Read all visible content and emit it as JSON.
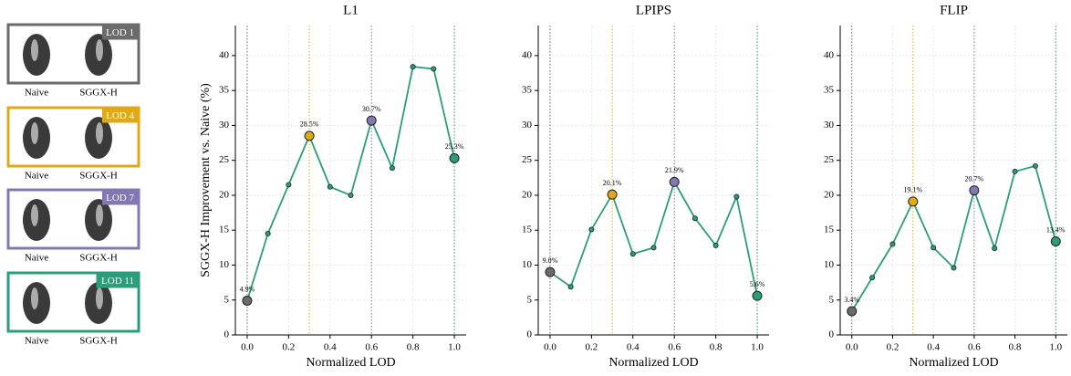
{
  "lod_panels": [
    {
      "label": "LOD 1",
      "color": "#6b6b6b",
      "captions": [
        "Naive",
        "SGGX-H"
      ]
    },
    {
      "label": "LOD 4",
      "color": "#e0a916",
      "captions": [
        "Naive",
        "SGGX-H"
      ]
    },
    {
      "label": "LOD 7",
      "color": "#8478b4",
      "captions": [
        "Naive",
        "SGGX-H"
      ]
    },
    {
      "label": "LOD 11",
      "color": "#2a9d7a",
      "captions": [
        "Naive",
        "SGGX-H"
      ]
    }
  ],
  "chart_data": [
    {
      "type": "line",
      "title": "L1",
      "x_label": "Normalized LOD",
      "y_label": "SGGX-H Improvement vs. Naive (%)",
      "x": [
        0,
        0.1,
        0.2,
        0.3,
        0.4,
        0.5,
        0.6,
        0.7,
        0.8,
        0.9,
        1.0
      ],
      "series": [
        {
          "name": "L1",
          "color": "#2a9d7a",
          "values": [
            4.9,
            14.5,
            21.5,
            28.5,
            21.2,
            20.0,
            30.7,
            23.9,
            38.4,
            38.1,
            25.3
          ],
          "value_labels": [
            "4.9%",
            null,
            null,
            "28.5%",
            null,
            null,
            "30.7%",
            null,
            null,
            null,
            "25.3%"
          ]
        }
      ],
      "highlights": [
        {
          "x": 0,
          "color": "#6b6b6b"
        },
        {
          "x": 0.3,
          "color": "#e0a916"
        },
        {
          "x": 0.6,
          "color": "#8478b4"
        },
        {
          "x": 1.0,
          "color": "#2a9d7a"
        }
      ],
      "xlim": [
        -0.057,
        1.057
      ],
      "ylim": [
        0,
        44.3
      ],
      "xticks": [
        {
          "value": 0,
          "label": "0.0"
        },
        0.2,
        0.4,
        0.6,
        0.8,
        {
          "value": 1,
          "label": "1.0"
        }
      ],
      "yticks": [
        0,
        5,
        10,
        15,
        20,
        25,
        30,
        35,
        40
      ],
      "grid": true
    },
    {
      "type": "line",
      "title": "LPIPS",
      "x_label": "Normalized LOD",
      "x": [
        0,
        0.1,
        0.2,
        0.3,
        0.4,
        0.5,
        0.6,
        0.7,
        0.8,
        0.9,
        1.0
      ],
      "series": [
        {
          "name": "LPIPS",
          "color": "#2a9d7a",
          "values": [
            9.0,
            6.9,
            15.1,
            20.1,
            11.6,
            12.5,
            21.9,
            16.7,
            12.8,
            19.8,
            5.6
          ],
          "value_labels": [
            "9.0%",
            null,
            null,
            "20.1%",
            null,
            null,
            "21.9%",
            null,
            null,
            null,
            "5.6%"
          ]
        }
      ],
      "highlights": [
        {
          "x": 0,
          "color": "#6b6b6b"
        },
        {
          "x": 0.3,
          "color": "#e0a916"
        },
        {
          "x": 0.6,
          "color": "#8478b4"
        },
        {
          "x": 1.0,
          "color": "#2a9d7a"
        }
      ],
      "xlim": [
        -0.057,
        1.057
      ],
      "ylim": [
        0,
        44.3
      ],
      "xticks": [
        {
          "value": 0,
          "label": "0.0"
        },
        0.2,
        0.4,
        0.6,
        0.8,
        {
          "value": 1,
          "label": "1.0"
        }
      ],
      "yticks": [
        0,
        5,
        10,
        15,
        20,
        25,
        30,
        35,
        40
      ],
      "grid": true
    },
    {
      "type": "line",
      "title": "FLIP",
      "x_label": "Normalized LOD",
      "x": [
        0,
        0.1,
        0.2,
        0.3,
        0.4,
        0.5,
        0.6,
        0.7,
        0.8,
        0.9,
        1.0
      ],
      "series": [
        {
          "name": "FLIP",
          "color": "#2a9d7a",
          "values": [
            3.4,
            8.2,
            13.0,
            19.1,
            12.5,
            9.6,
            20.7,
            12.4,
            23.4,
            24.2,
            13.4
          ],
          "value_labels": [
            "3.4%",
            null,
            null,
            "19.1%",
            null,
            null,
            "20.7%",
            null,
            null,
            null,
            "13.4%"
          ]
        }
      ],
      "highlights": [
        {
          "x": 0,
          "color": "#6b6b6b"
        },
        {
          "x": 0.3,
          "color": "#e0a916"
        },
        {
          "x": 0.6,
          "color": "#8478b4"
        },
        {
          "x": 1.0,
          "color": "#2a9d7a"
        }
      ],
      "xlim": [
        -0.057,
        1.057
      ],
      "ylim": [
        0,
        44.3
      ],
      "xticks": [
        {
          "value": 0,
          "label": "0.0"
        },
        0.2,
        0.4,
        0.6,
        0.8,
        {
          "value": 1,
          "label": "1.0"
        }
      ],
      "yticks": [
        0,
        5,
        10,
        15,
        20,
        25,
        30,
        35,
        40
      ],
      "grid": true
    }
  ]
}
